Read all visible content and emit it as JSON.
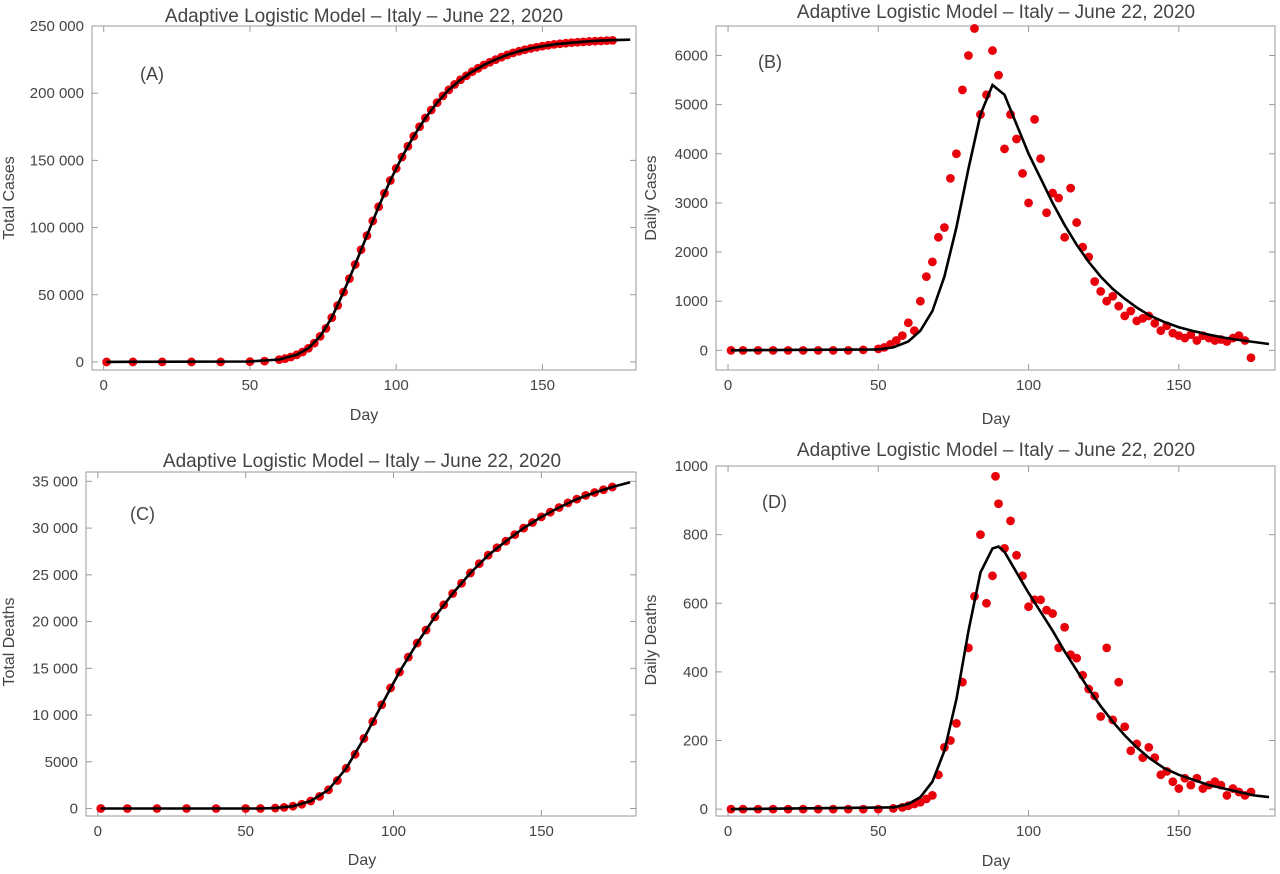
{
  "chart_data": [
    {
      "id": "A",
      "type": "scatter",
      "title": "Adaptive Logistic Model – Italy – June 22, 2020",
      "panel_label": "(A)",
      "xlabel": "Day",
      "ylabel": "Total Cases",
      "xlim": [
        -4,
        182
      ],
      "ylim": [
        -6000,
        250000
      ],
      "xticks": [
        0,
        50,
        100,
        150
      ],
      "xtick_labels": [
        "0",
        "50",
        "100",
        "150"
      ],
      "yticks": [
        0,
        50000,
        100000,
        150000,
        200000,
        250000
      ],
      "ytick_labels": [
        "0",
        "50 000",
        "100 000",
        "150 000",
        "200 000",
        "250 000"
      ],
      "grid": false,
      "series": [
        {
          "kind": "points",
          "color": "#e8000b",
          "x": [
            1,
            10,
            20,
            30,
            40,
            50,
            55,
            60,
            62,
            64,
            66,
            68,
            70,
            72,
            74,
            76,
            78,
            80,
            82,
            84,
            86,
            88,
            90,
            92,
            94,
            96,
            98,
            100,
            102,
            104,
            106,
            108,
            110,
            112,
            114,
            116,
            118,
            120,
            122,
            124,
            126,
            128,
            130,
            132,
            134,
            136,
            138,
            140,
            142,
            144,
            146,
            148,
            150,
            152,
            154,
            156,
            158,
            160,
            162,
            164,
            166,
            168,
            170,
            172,
            174
          ],
          "y": [
            0,
            0,
            0,
            0,
            0,
            200,
            600,
            1700,
            2500,
            3700,
            5300,
            7400,
            10200,
            14000,
            19000,
            25000,
            33000,
            42000,
            52000,
            62000,
            72500,
            83500,
            94000,
            105000,
            115500,
            125500,
            135000,
            144000,
            152500,
            160500,
            168000,
            175000,
            181500,
            187500,
            193000,
            198000,
            202500,
            206500,
            210000,
            213000,
            216000,
            218500,
            221000,
            223000,
            225000,
            226800,
            228500,
            230000,
            231200,
            232300,
            233300,
            234200,
            235000,
            235700,
            236300,
            236800,
            237200,
            237600,
            237900,
            238200,
            238500,
            238700,
            238900,
            239100,
            239300
          ]
        },
        {
          "kind": "line",
          "color": "#000000",
          "x": [
            1,
            50,
            60,
            66,
            70,
            74,
            78,
            82,
            86,
            90,
            94,
            98,
            102,
            106,
            110,
            114,
            118,
            122,
            126,
            130,
            134,
            138,
            142,
            146,
            150,
            155,
            160,
            165,
            170,
            175,
            180
          ],
          "y": [
            0,
            300,
            1800,
            5300,
            10200,
            19000,
            33000,
            52000,
            72500,
            94000,
            115500,
            135000,
            152500,
            168000,
            181500,
            193000,
            202500,
            210000,
            216000,
            221000,
            225000,
            228500,
            231200,
            233300,
            235000,
            236500,
            237600,
            238500,
            239100,
            239500,
            239800
          ]
        }
      ]
    },
    {
      "id": "B",
      "type": "scatter",
      "title": "Adaptive Logistic Model – Italy – June 22, 2020",
      "panel_label": "(B)",
      "xlabel": "Day",
      "ylabel": "Daily Cases",
      "xlim": [
        -4,
        182
      ],
      "ylim": [
        -400,
        6600
      ],
      "xticks": [
        0,
        50,
        100,
        150
      ],
      "xtick_labels": [
        "0",
        "50",
        "100",
        "150"
      ],
      "yticks": [
        0,
        1000,
        2000,
        3000,
        4000,
        5000,
        6000
      ],
      "ytick_labels": [
        "0",
        "1000",
        "2000",
        "3000",
        "4000",
        "5000",
        "6000"
      ],
      "grid": false,
      "series": [
        {
          "kind": "points",
          "color": "#e8000b",
          "x": [
            1,
            5,
            10,
            15,
            20,
            25,
            30,
            35,
            40,
            45,
            50,
            52,
            54,
            56,
            58,
            60,
            62,
            64,
            66,
            68,
            70,
            72,
            74,
            76,
            78,
            80,
            82,
            84,
            86,
            88,
            90,
            92,
            94,
            96,
            98,
            100,
            102,
            104,
            106,
            108,
            110,
            112,
            114,
            116,
            118,
            120,
            122,
            124,
            126,
            128,
            130,
            132,
            134,
            136,
            138,
            140,
            142,
            144,
            146,
            148,
            150,
            152,
            154,
            156,
            158,
            160,
            162,
            164,
            166,
            168,
            170,
            172,
            174
          ],
          "y": [
            0,
            0,
            0,
            0,
            0,
            0,
            0,
            0,
            0,
            10,
            30,
            60,
            120,
            200,
            300,
            560,
            400,
            1000,
            1500,
            1800,
            2300,
            2500,
            3500,
            4000,
            5300,
            6000,
            6550,
            4800,
            5200,
            6100,
            5600,
            4100,
            4800,
            4300,
            3600,
            3000,
            4700,
            3900,
            2800,
            3200,
            3100,
            2300,
            3300,
            2600,
            2100,
            1900,
            1400,
            1200,
            1000,
            1100,
            900,
            700,
            800,
            600,
            650,
            700,
            550,
            400,
            500,
            350,
            300,
            250,
            320,
            200,
            300,
            250,
            200,
            220,
            180,
            250,
            300,
            200,
            -150
          ]
        },
        {
          "kind": "line",
          "color": "#000000",
          "x": [
            1,
            50,
            55,
            60,
            64,
            68,
            72,
            76,
            80,
            84,
            88,
            92,
            96,
            100,
            104,
            108,
            112,
            116,
            120,
            124,
            128,
            132,
            136,
            140,
            145,
            150,
            155,
            160,
            165,
            170,
            175,
            180
          ],
          "y": [
            0,
            20,
            60,
            180,
            400,
            800,
            1500,
            2500,
            3700,
            4800,
            5400,
            5200,
            4600,
            4000,
            3500,
            3000,
            2550,
            2150,
            1800,
            1500,
            1250,
            1050,
            870,
            720,
            580,
            470,
            390,
            320,
            260,
            210,
            170,
            130
          ]
        }
      ]
    },
    {
      "id": "C",
      "type": "scatter",
      "title": "Adaptive Logistic Model – Italy – June 22, 2020",
      "panel_label": "(C)",
      "xlabel": "Day",
      "ylabel": "Total Deaths",
      "xlim": [
        -4,
        182
      ],
      "ylim": [
        -800,
        36000
      ],
      "xticks": [
        0,
        50,
        100,
        150
      ],
      "xtick_labels": [
        "0",
        "50",
        "100",
        "150"
      ],
      "yticks": [
        0,
        5000,
        10000,
        15000,
        20000,
        25000,
        30000,
        35000
      ],
      "ytick_labels": [
        "0",
        "5000",
        "10 000",
        "15 000",
        "20 000",
        "25 000",
        "30 000",
        "35 000"
      ],
      "grid": false,
      "series": [
        {
          "kind": "points",
          "color": "#e8000b",
          "x": [
            1,
            10,
            20,
            30,
            40,
            50,
            55,
            60,
            63,
            66,
            69,
            72,
            75,
            78,
            81,
            84,
            87,
            90,
            93,
            96,
            99,
            102,
            105,
            108,
            111,
            114,
            117,
            120,
            123,
            126,
            129,
            132,
            135,
            138,
            141,
            144,
            147,
            150,
            153,
            156,
            159,
            162,
            165,
            168,
            171,
            174
          ],
          "y": [
            0,
            0,
            0,
            0,
            0,
            0,
            0,
            50,
            120,
            250,
            460,
            800,
            1300,
            2000,
            3000,
            4300,
            5800,
            7500,
            9300,
            11100,
            12900,
            14600,
            16200,
            17700,
            19100,
            20500,
            21800,
            23000,
            24100,
            25200,
            26200,
            27100,
            27900,
            28600,
            29300,
            30000,
            30600,
            31200,
            31700,
            32200,
            32700,
            33100,
            33500,
            33800,
            34100,
            34400
          ]
        },
        {
          "kind": "line",
          "color": "#000000",
          "x": [
            1,
            55,
            60,
            66,
            72,
            78,
            84,
            90,
            96,
            102,
            108,
            114,
            120,
            126,
            132,
            138,
            144,
            150,
            156,
            162,
            168,
            174,
            180
          ],
          "y": [
            0,
            0,
            50,
            250,
            800,
            2000,
            4300,
            7500,
            11100,
            14600,
            17700,
            20500,
            23000,
            25200,
            27100,
            28600,
            30000,
            31200,
            32200,
            33100,
            33800,
            34400,
            34900
          ]
        }
      ]
    },
    {
      "id": "D",
      "type": "scatter",
      "title": "Adaptive Logistic Model – Italy – June 22, 2020",
      "panel_label": "(D)",
      "xlabel": "Day",
      "ylabel": "Daily Deaths",
      "xlim": [
        -4,
        182
      ],
      "ylim": [
        -20,
        1000
      ],
      "xticks": [
        0,
        50,
        100,
        150
      ],
      "xtick_labels": [
        "0",
        "50",
        "100",
        "150"
      ],
      "yticks": [
        0,
        200,
        400,
        600,
        800,
        1000
      ],
      "ytick_labels": [
        "0",
        "200",
        "400",
        "600",
        "800",
        "1000"
      ],
      "grid": false,
      "series": [
        {
          "kind": "points",
          "color": "#e8000b",
          "x": [
            1,
            5,
            10,
            15,
            20,
            25,
            30,
            35,
            40,
            45,
            50,
            55,
            58,
            60,
            62,
            64,
            66,
            68,
            70,
            72,
            74,
            76,
            78,
            80,
            82,
            84,
            86,
            88,
            89,
            90,
            92,
            94,
            96,
            98,
            100,
            102,
            104,
            106,
            108,
            110,
            112,
            114,
            116,
            118,
            120,
            122,
            124,
            126,
            128,
            130,
            132,
            134,
            136,
            138,
            140,
            142,
            144,
            146,
            148,
            150,
            152,
            154,
            156,
            158,
            160,
            162,
            164,
            166,
            168,
            170,
            172,
            174
          ],
          "y": [
            0,
            0,
            0,
            0,
            0,
            0,
            0,
            0,
            0,
            0,
            0,
            2,
            5,
            10,
            15,
            20,
            30,
            40,
            100,
            180,
            200,
            250,
            370,
            470,
            620,
            800,
            600,
            680,
            970,
            890,
            760,
            840,
            740,
            680,
            590,
            610,
            610,
            580,
            570,
            470,
            530,
            450,
            440,
            390,
            350,
            330,
            270,
            470,
            260,
            370,
            240,
            170,
            190,
            150,
            180,
            150,
            100,
            110,
            80,
            60,
            90,
            70,
            90,
            60,
            70,
            80,
            70,
            40,
            60,
            50,
            40,
            50
          ]
        },
        {
          "kind": "line",
          "color": "#000000",
          "x": [
            1,
            55,
            60,
            64,
            68,
            72,
            76,
            80,
            84,
            88,
            90,
            92,
            96,
            100,
            104,
            108,
            112,
            116,
            120,
            124,
            128,
            132,
            136,
            140,
            145,
            150,
            155,
            160,
            165,
            170,
            175,
            180
          ],
          "y": [
            0,
            5,
            15,
            35,
            80,
            170,
            320,
            520,
            690,
            760,
            765,
            750,
            690,
            630,
            575,
            520,
            460,
            405,
            350,
            300,
            255,
            215,
            180,
            150,
            120,
            100,
            85,
            70,
            60,
            50,
            40,
            35
          ]
        }
      ]
    }
  ]
}
